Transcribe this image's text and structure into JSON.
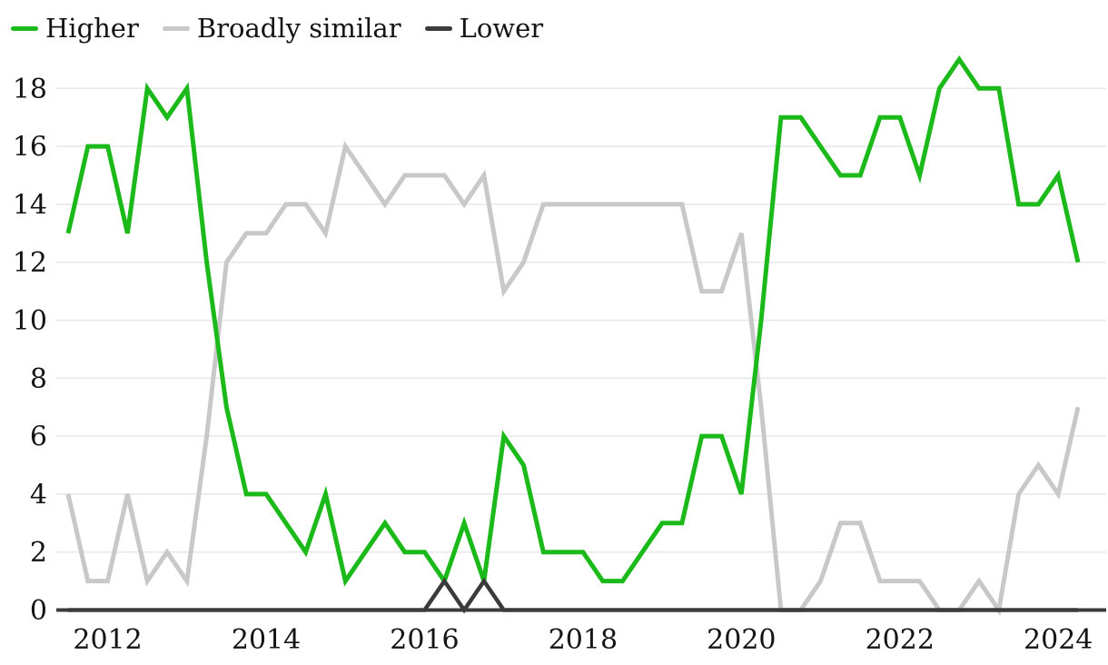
{
  "legend": {
    "items": [
      {
        "label": "Higher",
        "color": "#1bb919",
        "swatch_icon": "line-swatch-icon"
      },
      {
        "label": "Broadly similar",
        "color": "#c8c8c8",
        "swatch_icon": "line-swatch-icon"
      },
      {
        "label": "Lower",
        "color": "#3b3b3b",
        "swatch_icon": "line-swatch-icon"
      }
    ]
  },
  "colors": {
    "higher": "#1bb919",
    "broadly_similar": "#c8c8c8",
    "lower": "#3b3b3b",
    "gridline": "#e8e8e8",
    "axis_line": "#3b3b3b",
    "text": "#141414",
    "background": "#ffffff"
  },
  "chart_data": {
    "type": "line",
    "title": "",
    "xlabel": "",
    "ylabel": "",
    "x_axis": {
      "start_year": 2011.5,
      "step_years": 0.25,
      "tick_years": [
        2012,
        2014,
        2016,
        2018,
        2020,
        2022,
        2024
      ],
      "tick_labels": [
        "2012",
        "2014",
        "2016",
        "2018",
        "2020",
        "2022",
        "2024"
      ]
    },
    "y_axis": {
      "ticks": [
        0,
        2,
        4,
        6,
        8,
        10,
        12,
        14,
        16,
        18
      ],
      "tick_labels": [
        "0",
        "2",
        "4",
        "6",
        "8",
        "10",
        "12",
        "14",
        "16",
        "18"
      ],
      "ylim": [
        0,
        19.2
      ]
    },
    "grid": true,
    "legend_position": "top-left",
    "series": [
      {
        "name": "Higher",
        "color": "#1bb919",
        "values": [
          13,
          16,
          16,
          13,
          18,
          17,
          18,
          12,
          7,
          4,
          4,
          3,
          2,
          4,
          1,
          2,
          3,
          2,
          2,
          1,
          3,
          1,
          6,
          5,
          2,
          2,
          2,
          1,
          1,
          2,
          3,
          3,
          6,
          6,
          4,
          10,
          17,
          17,
          16,
          15,
          15,
          17,
          17,
          15,
          18,
          19,
          18,
          18,
          14,
          14,
          15,
          12
        ]
      },
      {
        "name": "Broadly similar",
        "color": "#c8c8c8",
        "values": [
          4,
          1,
          1,
          4,
          1,
          2,
          1,
          6,
          12,
          13,
          13,
          14,
          14,
          13,
          16,
          15,
          14,
          15,
          15,
          15,
          14,
          15,
          11,
          12,
          14,
          14,
          14,
          14,
          14,
          14,
          14,
          14,
          11,
          11,
          13,
          7,
          0,
          0,
          1,
          3,
          3,
          1,
          1,
          1,
          0,
          0,
          1,
          0,
          4,
          5,
          4,
          7
        ]
      },
      {
        "name": "Lower",
        "color": "#3b3b3b",
        "values": [
          0,
          0,
          0,
          0,
          0,
          0,
          0,
          0,
          0,
          0,
          0,
          0,
          0,
          0,
          0,
          0,
          0,
          0,
          0,
          1,
          0,
          1,
          0,
          0,
          0,
          0,
          0,
          0,
          0,
          0,
          0,
          0,
          0,
          0,
          0,
          0,
          0,
          0,
          0,
          0,
          0,
          0,
          0,
          0,
          0,
          0,
          0,
          0,
          0,
          0,
          0,
          0
        ]
      }
    ]
  }
}
